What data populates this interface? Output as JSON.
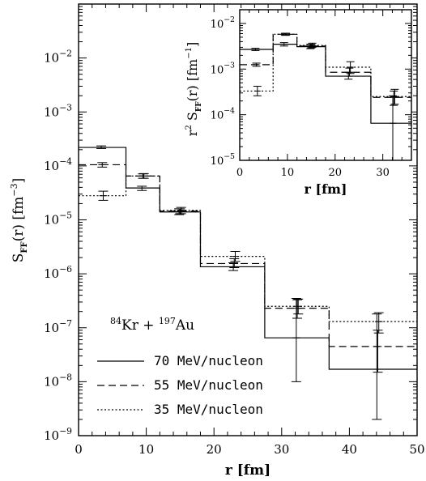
{
  "chart_data": [
    {
      "id": "main",
      "type": "line",
      "step": true,
      "xscale": "linear",
      "yscale": "log",
      "xlim": [
        0,
        50
      ],
      "ylim": [
        1e-09,
        0.1
      ],
      "xticks": [
        0,
        10,
        20,
        30,
        40,
        50
      ],
      "xlabel": "r [fm]",
      "ylabel": "S_ff(r) [fm^-3]",
      "bin_edges": [
        0,
        7,
        12,
        18,
        27.5,
        37,
        50
      ],
      "bin_centers": [
        3.5,
        9.5,
        15,
        23,
        32.3,
        44.2
      ],
      "series": [
        {
          "name": "70 MeV/nucleon",
          "dash": "solid",
          "values": [
            0.00022,
            3.9e-05,
            1.4e-05,
            1.35e-06,
            6.5e-08,
            1.7e-08
          ],
          "err_low": [
            0.00021,
            3.5e-05,
            1.25e-05,
            1.15e-06,
            1e-08,
            2e-09
          ],
          "err_high": [
            0.000235,
            4.2e-05,
            1.6e-05,
            1.6e-06,
            3.5e-07,
            1.8e-07
          ]
        },
        {
          "name": "55 MeV/nucleon",
          "dash": "dashed",
          "values": [
            0.000105,
            6.5e-05,
            1.45e-05,
            1.55e-06,
            2.3e-07,
            4.5e-08
          ],
          "err_low": [
            9.5e-05,
            5.9e-05,
            1.3e-05,
            1.3e-06,
            1.5e-07,
            1.5e-08
          ],
          "err_high": [
            0.000115,
            7.1e-05,
            1.6e-05,
            1.9e-06,
            3.3e-07,
            9e-08
          ]
        },
        {
          "name": "35 MeV/nucleon",
          "dash": "dotted",
          "values": [
            2.8e-05,
            6.5e-05,
            1.5e-05,
            2.1e-06,
            2.5e-07,
            1.3e-07
          ],
          "err_low": [
            2.3e-05,
            5.9e-05,
            1.3e-05,
            1.7e-06,
            1.8e-07,
            8e-08
          ],
          "err_high": [
            3.4e-05,
            7.2e-05,
            1.7e-05,
            2.6e-06,
            3.4e-07,
            1.9e-07
          ]
        }
      ],
      "annotation": {
        "a1": "84",
        "e1": "Kr",
        "plus": "+",
        "a2": "197",
        "e2": "Au"
      }
    },
    {
      "id": "inset",
      "type": "line",
      "step": true,
      "xscale": "linear",
      "yscale": "log",
      "xlim": [
        0,
        36
      ],
      "ylim": [
        1e-05,
        0.02
      ],
      "xticks": [
        0,
        10,
        20,
        30
      ],
      "xlabel": "r [fm]",
      "ylabel": "r^2 S_ff(r) [fm^-1]",
      "bin_edges": [
        0,
        7,
        12,
        18,
        27.5,
        36
      ],
      "bin_centers": [
        3.5,
        9.5,
        15,
        23,
        32.3
      ],
      "series": [
        {
          "name": "70 MeV/nucleon",
          "dash": "solid",
          "values": [
            0.0027,
            0.0035,
            0.0031,
            0.0007,
            6.5e-05
          ],
          "err_low": [
            0.00255,
            0.0032,
            0.0028,
            0.0006,
            1e-05
          ],
          "err_high": [
            0.00285,
            0.0038,
            0.0035,
            0.00085,
            0.00026
          ]
        },
        {
          "name": "55 MeV/nucleon",
          "dash": "dashed",
          "values": [
            0.00125,
            0.0058,
            0.0032,
            0.00085,
            0.00024
          ],
          "err_low": [
            0.00115,
            0.0055,
            0.0029,
            0.0007,
            0.00016
          ],
          "err_high": [
            0.00135,
            0.0061,
            0.0035,
            0.00105,
            0.00033
          ]
        },
        {
          "name": "35 MeV/nucleon",
          "dash": "dotted",
          "values": [
            0.00033,
            0.0058,
            0.0033,
            0.0011,
            0.00025
          ],
          "err_low": [
            0.00026,
            0.0055,
            0.003,
            0.0008,
            0.00017
          ],
          "err_high": [
            0.00042,
            0.0061,
            0.0037,
            0.00145,
            0.00036
          ]
        }
      ]
    }
  ]
}
